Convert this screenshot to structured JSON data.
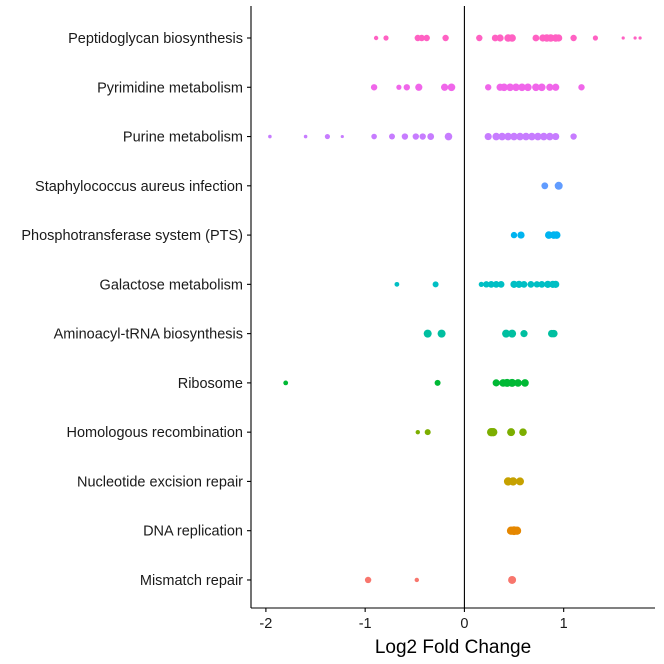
{
  "chart_data": {
    "type": "scatter",
    "title": "",
    "xlabel": "Log2 Fold Change",
    "ylabel": "",
    "xlim": [
      -2.15,
      1.92
    ],
    "xticks": [
      -2,
      -1,
      0,
      1
    ],
    "xtick_labels": [
      "-2",
      "-1",
      "0",
      "1"
    ],
    "grid": false,
    "legend": "none",
    "reference_line_x": 0,
    "categories": [
      "Peptidoglycan biosynthesis",
      "Pyrimidine metabolism",
      "Purine metabolism",
      "Staphylococcus aureus infection",
      "Phosphotransferase system (PTS)",
      "Galactose metabolism",
      "Aminoacyl-tRNA biosynthesis",
      "Ribosome",
      "Homologous recombination",
      "Nucleotide excision repair",
      "DNA replication",
      "Mismatch repair"
    ],
    "series": [
      {
        "category": "Peptidoglycan biosynthesis",
        "color": "#FF61C3",
        "x": [
          -0.89,
          -0.79,
          -0.47,
          -0.43,
          -0.38,
          -0.19,
          0.15,
          0.31,
          0.36,
          0.44,
          0.48,
          0.72,
          0.79,
          0.83,
          0.87,
          0.92,
          0.95,
          1.1,
          1.32,
          1.6,
          1.72,
          1.77
        ],
        "s": [
          2.2,
          2.6,
          3.2,
          3.2,
          3.2,
          3.2,
          3.2,
          3.4,
          3.6,
          3.8,
          3.8,
          3.4,
          3.6,
          3.8,
          3.8,
          3.8,
          3.6,
          3.2,
          2.6,
          1.6,
          1.6,
          1.6
        ]
      },
      {
        "category": "Pyrimidine metabolism",
        "color": "#F066EA",
        "x": [
          -0.91,
          -0.66,
          -0.58,
          -0.46,
          -0.2,
          -0.13,
          0.24,
          0.36,
          0.4,
          0.46,
          0.52,
          0.58,
          0.64,
          0.72,
          0.78,
          0.86,
          0.92,
          1.18
        ],
        "s": [
          3.2,
          2.6,
          3.2,
          3.6,
          3.6,
          3.8,
          3.2,
          3.6,
          3.8,
          3.8,
          3.8,
          3.8,
          3.8,
          3.8,
          3.8,
          3.6,
          3.6,
          3.2
        ]
      },
      {
        "category": "Purine metabolism",
        "color": "#C77CFF",
        "x": [
          -1.96,
          -1.6,
          -1.38,
          -1.23,
          -0.91,
          -0.73,
          -0.6,
          -0.49,
          -0.42,
          -0.34,
          -0.16,
          0.24,
          0.32,
          0.38,
          0.44,
          0.5,
          0.56,
          0.62,
          0.68,
          0.74,
          0.8,
          0.86,
          0.92,
          1.1
        ],
        "s": [
          1.8,
          1.8,
          2.6,
          1.6,
          2.8,
          3.0,
          3.2,
          3.2,
          3.2,
          3.4,
          3.8,
          3.6,
          3.8,
          3.8,
          3.8,
          3.8,
          3.8,
          3.8,
          3.8,
          3.8,
          3.8,
          3.8,
          3.6,
          3.2
        ]
      },
      {
        "category": "Staphylococcus aureus infection",
        "color": "#619CFF",
        "x": [
          0.81,
          0.95
        ],
        "s": [
          3.4,
          4.0
        ]
      },
      {
        "category": "Phosphotransferase system (PTS)",
        "color": "#00B4F0",
        "x": [
          0.5,
          0.57,
          0.85,
          0.9,
          0.93
        ],
        "s": [
          3.2,
          3.6,
          3.8,
          3.8,
          3.8
        ]
      },
      {
        "category": "Galactose metabolism",
        "color": "#00BFC4",
        "x": [
          -0.68,
          -0.29,
          0.17,
          0.22,
          0.27,
          0.32,
          0.37,
          0.5,
          0.55,
          0.6,
          0.67,
          0.73,
          0.78,
          0.84,
          0.89,
          0.92
        ],
        "s": [
          2.4,
          3.0,
          2.6,
          3.2,
          3.4,
          3.4,
          3.4,
          3.6,
          3.6,
          3.4,
          3.4,
          3.2,
          3.4,
          3.6,
          3.6,
          3.6
        ]
      },
      {
        "category": "Aminoacyl-tRNA biosynthesis",
        "color": "#00BFA0",
        "x": [
          -0.37,
          -0.23,
          0.42,
          0.48,
          0.6,
          0.88,
          0.9
        ],
        "s": [
          4.0,
          4.0,
          4.0,
          4.0,
          3.6,
          3.8,
          3.8
        ]
      },
      {
        "category": "Ribosome",
        "color": "#00B935",
        "x": [
          -1.8,
          -0.27,
          0.32,
          0.39,
          0.43,
          0.48,
          0.54,
          0.61
        ],
        "s": [
          2.4,
          3.0,
          3.6,
          3.8,
          4.0,
          4.0,
          3.8,
          3.8
        ]
      },
      {
        "category": "Homologous recombination",
        "color": "#7CAE00",
        "x": [
          -0.47,
          -0.37,
          0.27,
          0.29,
          0.47,
          0.59
        ],
        "s": [
          2.2,
          3.0,
          4.2,
          4.2,
          4.0,
          3.8
        ]
      },
      {
        "category": "Nucleotide excision repair",
        "color": "#C6A100",
        "x": [
          0.44,
          0.49,
          0.56
        ],
        "s": [
          4.2,
          4.2,
          4.0
        ]
      },
      {
        "category": "DNA replication",
        "color": "#E58700",
        "x": [
          0.47,
          0.5,
          0.53
        ],
        "s": [
          4.2,
          4.4,
          4.2
        ]
      },
      {
        "category": "Mismatch repair",
        "color": "#F8766D",
        "x": [
          -0.97,
          -0.48,
          0.48
        ],
        "s": [
          3.2,
          2.2,
          4.0
        ]
      }
    ]
  }
}
